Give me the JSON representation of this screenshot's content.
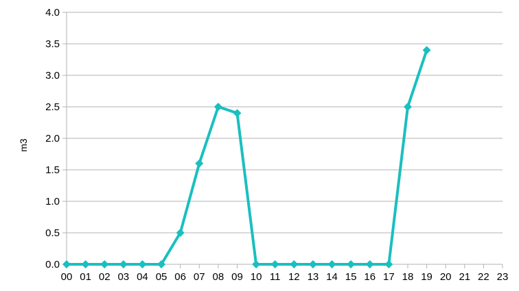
{
  "chart_data": {
    "type": "line",
    "title": "",
    "xlabel": "",
    "ylabel": "m3",
    "categories": [
      "00",
      "01",
      "02",
      "03",
      "04",
      "05",
      "06",
      "07",
      "08",
      "09",
      "10",
      "11",
      "12",
      "13",
      "14",
      "15",
      "16",
      "17",
      "18",
      "19",
      "20",
      "21",
      "22",
      "23"
    ],
    "series": [
      {
        "values": [
          0,
          0,
          0,
          0,
          0,
          0,
          0.5,
          1.6,
          2.5,
          2.4,
          0,
          0,
          0,
          0,
          0,
          0,
          0,
          0,
          2.5,
          3.4,
          null,
          null,
          null,
          null
        ],
        "color": "#1abfbf",
        "marker": "diamond"
      }
    ],
    "ylim": [
      0,
      4.0
    ],
    "yticks": [
      "0.0",
      "0.5",
      "1.0",
      "1.5",
      "2.0",
      "2.5",
      "3.0",
      "3.5",
      "4.0"
    ],
    "grid": true,
    "legend": "none"
  }
}
